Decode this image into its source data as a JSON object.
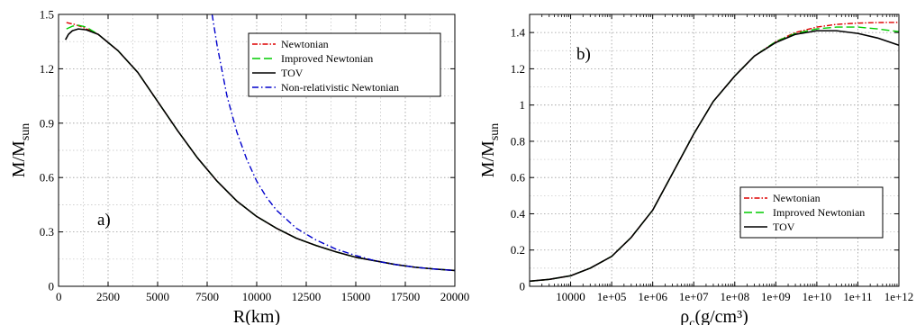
{
  "chart_data": [
    {
      "type": "line",
      "panel_label": "a)",
      "xlabel": "R(km)",
      "ylabel": "M/M",
      "ylabel_sub": "sun",
      "xlim": [
        0,
        20000
      ],
      "ylim": [
        0,
        1.5
      ],
      "xticks": [
        0,
        2500,
        5000,
        7500,
        10000,
        12500,
        15000,
        17500,
        20000
      ],
      "xtick_labels": [
        "0",
        "2500",
        "5000",
        "7500",
        "10000",
        "12500",
        "15000",
        "17500",
        "20000"
      ],
      "yticks": [
        0,
        0.3,
        0.6,
        0.9,
        1.2,
        1.5
      ],
      "ytick_labels": [
        "0",
        "0.3",
        "0.6",
        "0.9",
        "1.2",
        "1.5"
      ],
      "grid": true,
      "legend_position": "top-right",
      "series": [
        {
          "name": "Newtonian",
          "color": "#dd0000",
          "dash": "6 2 1.5 2",
          "x": [
            400,
            800,
            1200,
            2000,
            3000,
            4000,
            5000,
            6000,
            7000,
            8000,
            9000,
            10000,
            11000,
            12000,
            13000,
            14000,
            15000,
            16000,
            17000,
            18000,
            19000,
            20000
          ],
          "y": [
            1.455,
            1.445,
            1.43,
            1.39,
            1.3,
            1.18,
            1.02,
            0.86,
            0.71,
            0.58,
            0.47,
            0.385,
            0.32,
            0.265,
            0.225,
            0.19,
            0.16,
            0.14,
            0.12,
            0.105,
            0.095,
            0.087
          ]
        },
        {
          "name": "Improved Newtonian",
          "color": "#00cc00",
          "dash": "9 4",
          "x": [
            400,
            700,
            1000,
            1400,
            2000,
            3000,
            4000,
            5000,
            6000,
            7000,
            8000,
            9000,
            10000,
            11000,
            12000,
            13000,
            14000,
            15000,
            16000,
            17000,
            18000,
            19000,
            20000
          ],
          "y": [
            1.42,
            1.435,
            1.44,
            1.43,
            1.39,
            1.3,
            1.18,
            1.02,
            0.86,
            0.71,
            0.58,
            0.47,
            0.385,
            0.32,
            0.265,
            0.225,
            0.19,
            0.16,
            0.14,
            0.12,
            0.105,
            0.095,
            0.087
          ]
        },
        {
          "name": "TOV",
          "color": "#000000",
          "dash": "",
          "x": [
            350,
            500,
            700,
            1000,
            1400,
            2000,
            3000,
            4000,
            5000,
            6000,
            7000,
            8000,
            9000,
            10000,
            11000,
            12000,
            13000,
            14000,
            15000,
            16000,
            17000,
            18000,
            19000,
            20000
          ],
          "y": [
            1.36,
            1.39,
            1.41,
            1.42,
            1.415,
            1.39,
            1.3,
            1.18,
            1.02,
            0.86,
            0.71,
            0.58,
            0.47,
            0.385,
            0.32,
            0.265,
            0.225,
            0.19,
            0.16,
            0.14,
            0.12,
            0.105,
            0.095,
            0.087
          ]
        },
        {
          "name": "Non-relativistic Newtonian",
          "color": "#0000cc",
          "dash": "7 3 1.5 3",
          "x": [
            7750,
            8000,
            8500,
            9000,
            9500,
            10000,
            10500,
            11000,
            12000,
            13000,
            14000,
            15000,
            16000,
            17000,
            18000,
            19000,
            20000
          ],
          "y": [
            1.5,
            1.33,
            1.05,
            0.85,
            0.7,
            0.58,
            0.49,
            0.42,
            0.32,
            0.255,
            0.205,
            0.17,
            0.14,
            0.12,
            0.105,
            0.095,
            0.087
          ]
        }
      ]
    },
    {
      "type": "line",
      "panel_label": "b)",
      "xlabel": "ρ",
      "xlabel_sub": "c",
      "xlabel_unit": "(g/cm³)",
      "ylabel": "M/M",
      "ylabel_sub": "sun",
      "x_scale": "log",
      "xlim": [
        1000,
        1000000000000.0
      ],
      "ylim": [
        0,
        1.5
      ],
      "xticks": [
        10000,
        100000,
        1000000,
        10000000,
        100000000,
        1000000000,
        10000000000,
        100000000000,
        1000000000000
      ],
      "xtick_labels": [
        "10000",
        "1e+05",
        "1e+06",
        "1e+07",
        "1e+08",
        "1e+09",
        "1e+10",
        "1e+11",
        "1e+12"
      ],
      "yticks": [
        0,
        0.2,
        0.4,
        0.6,
        0.8,
        1,
        1.2,
        1.4
      ],
      "ytick_labels": [
        "0",
        "0.2",
        "0.4",
        "0.6",
        "0.8",
        "1",
        "1.2",
        "1.4"
      ],
      "grid": true,
      "legend_position": "bottom-right",
      "series": [
        {
          "name": "Newtonian",
          "color": "#dd0000",
          "dash": "6 2 1.5 2",
          "x": [
            1000,
            3000,
            10000,
            30000,
            100000,
            300000,
            1000000,
            3000000,
            10000000,
            30000000,
            100000000,
            300000000,
            1000000000,
            3000000000,
            10000000000,
            30000000000,
            100000000000,
            300000000000,
            1000000000000
          ],
          "y": [
            0.028,
            0.038,
            0.058,
            0.1,
            0.165,
            0.27,
            0.42,
            0.62,
            0.84,
            1.02,
            1.16,
            1.27,
            1.35,
            1.4,
            1.43,
            1.445,
            1.452,
            1.455,
            1.456
          ]
        },
        {
          "name": "Improved Newtonian",
          "color": "#00cc00",
          "dash": "9 4",
          "x": [
            1000,
            3000,
            10000,
            30000,
            100000,
            300000,
            1000000,
            3000000,
            10000000,
            30000000,
            100000000,
            300000000,
            1000000000,
            3000000000,
            10000000000,
            30000000000,
            100000000000,
            300000000000,
            1000000000000
          ],
          "y": [
            0.028,
            0.038,
            0.058,
            0.1,
            0.165,
            0.27,
            0.42,
            0.62,
            0.84,
            1.02,
            1.16,
            1.27,
            1.35,
            1.395,
            1.42,
            1.43,
            1.43,
            1.42,
            1.405
          ]
        },
        {
          "name": "TOV",
          "color": "#000000",
          "dash": "",
          "x": [
            1000,
            3000,
            10000,
            30000,
            100000,
            300000,
            1000000,
            3000000,
            10000000,
            30000000,
            100000000,
            300000000,
            1000000000,
            3000000000,
            10000000000,
            30000000000,
            100000000000,
            300000000000,
            1000000000000
          ],
          "y": [
            0.028,
            0.038,
            0.058,
            0.1,
            0.165,
            0.27,
            0.42,
            0.62,
            0.84,
            1.02,
            1.16,
            1.27,
            1.345,
            1.39,
            1.41,
            1.41,
            1.395,
            1.37,
            1.33
          ]
        }
      ]
    }
  ]
}
